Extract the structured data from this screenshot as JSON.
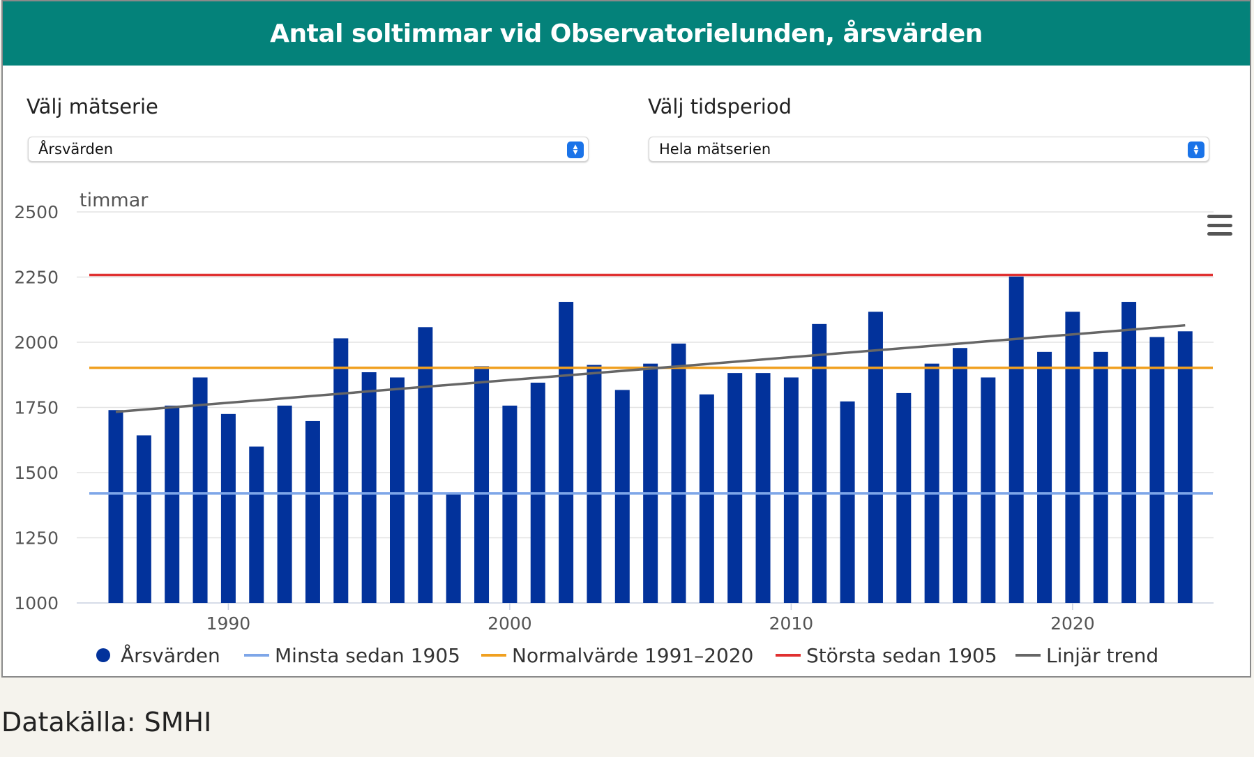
{
  "header": {
    "title": "Antal soltimmar vid Observatorielunden, årsvärden"
  },
  "controls": {
    "series_label": "Välj mätserie",
    "series_value": "Årsvärden",
    "period_label": "Välj tidsperiod",
    "period_value": "Hela mätserien"
  },
  "menu": {
    "icon": "hamburger-menu-icon"
  },
  "source": "Datakälla: SMHI",
  "colors": {
    "header": "#04827a",
    "bars": "#02329b",
    "min_line": "#7ea6e8",
    "normal_line": "#f0a020",
    "max_line": "#e03030",
    "trend_line": "#666666"
  },
  "chart_data": {
    "type": "bar",
    "ylabel": "timmar",
    "ylim": [
      1000,
      2500
    ],
    "yticks": [
      1000,
      1250,
      1500,
      1750,
      2000,
      2250,
      2500
    ],
    "xticks": [
      1990,
      2000,
      2010,
      2020
    ],
    "grid": true,
    "legend_position": "bottom",
    "x": [
      1986,
      1987,
      1988,
      1989,
      1990,
      1991,
      1992,
      1993,
      1994,
      1995,
      1996,
      1997,
      1998,
      1999,
      2000,
      2001,
      2002,
      2003,
      2004,
      2005,
      2006,
      2007,
      2008,
      2009,
      2010,
      2011,
      2012,
      2013,
      2014,
      2015,
      2016,
      2017,
      2018,
      2019,
      2020,
      2021,
      2022,
      2023,
      2024
    ],
    "series": [
      {
        "name": "Årsvärden",
        "type": "bar",
        "values": [
          1740,
          1643,
          1757,
          1865,
          1725,
          1600,
          1757,
          1698,
          2015,
          1885,
          1865,
          2058,
          1418,
          1908,
          1757,
          1845,
          2155,
          1913,
          1817,
          1918,
          1995,
          1800,
          1882,
          1882,
          1865,
          2070,
          1773,
          2117,
          1805,
          1918,
          1978,
          1865,
          2252,
          1963,
          2117,
          1963,
          2155,
          2020,
          2042
        ]
      },
      {
        "name": "Minsta sedan 1905",
        "type": "line",
        "value": 1420
      },
      {
        "name": "Normalvärde 1991–2020",
        "type": "line",
        "value": 1902
      },
      {
        "name": "Största sedan 1905",
        "type": "line",
        "value": 2258
      },
      {
        "name": "Linjär trend",
        "type": "line",
        "points": [
          [
            1986,
            1733
          ],
          [
            2024,
            2065
          ]
        ]
      }
    ]
  }
}
